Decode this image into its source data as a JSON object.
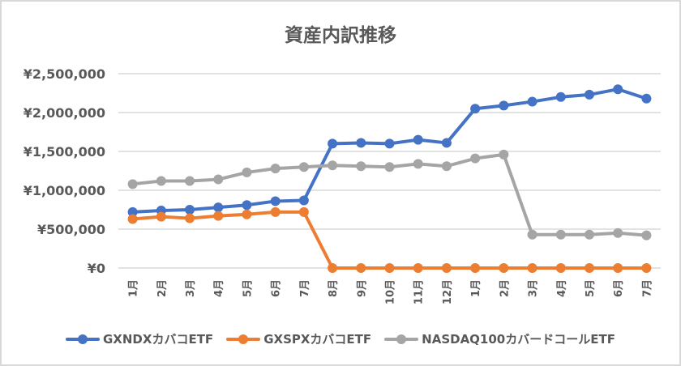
{
  "chart_data": {
    "type": "line",
    "title": "資産内訳推移",
    "xlabel": "",
    "ylabel": "",
    "ylim": [
      0,
      2500000
    ],
    "yticks": [
      "¥0",
      "¥500,000",
      "¥1,000,000",
      "¥1,500,000",
      "¥2,000,000",
      "¥2,500,000"
    ],
    "ytick_values": [
      0,
      500000,
      1000000,
      1500000,
      2000000,
      2500000
    ],
    "grid": true,
    "legend_position": "bottom",
    "categories": [
      "1月",
      "2月",
      "3月",
      "4月",
      "5月",
      "6月",
      "7月",
      "8月",
      "9月",
      "10月",
      "11月",
      "12月",
      "1月",
      "2月",
      "3月",
      "4月",
      "5月",
      "6月",
      "7月"
    ],
    "series": [
      {
        "name": "GXNDXカバコETF",
        "color": "#4472C4",
        "values": [
          720000,
          740000,
          750000,
          780000,
          810000,
          860000,
          870000,
          1600000,
          1610000,
          1600000,
          1650000,
          1610000,
          2050000,
          2090000,
          2140000,
          2200000,
          2230000,
          2300000,
          2180000
        ]
      },
      {
        "name": "GXSPXカバコETF",
        "color": "#ED7D31",
        "values": [
          630000,
          660000,
          640000,
          670000,
          690000,
          720000,
          720000,
          0,
          0,
          0,
          0,
          0,
          0,
          0,
          0,
          0,
          0,
          0,
          0
        ]
      },
      {
        "name": "NASDAQ100カバードコールETF",
        "color": "#A5A5A5",
        "values": [
          1080000,
          1120000,
          1120000,
          1140000,
          1230000,
          1280000,
          1300000,
          1320000,
          1310000,
          1300000,
          1340000,
          1310000,
          1410000,
          1460000,
          430000,
          430000,
          430000,
          450000,
          420000
        ]
      }
    ]
  }
}
